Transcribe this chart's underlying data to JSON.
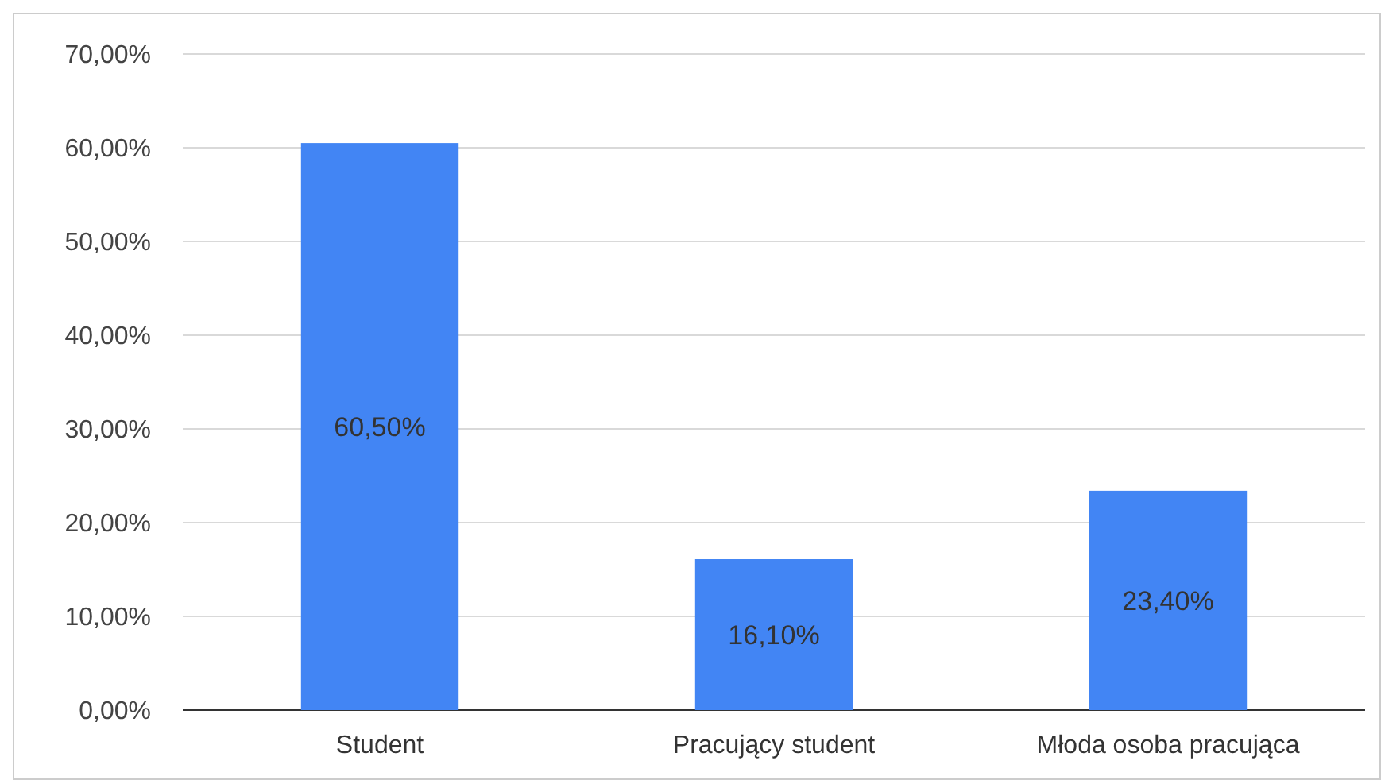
{
  "chart_data": {
    "type": "bar",
    "categories": [
      "Student",
      "Pracujący student",
      "Młoda osoba pracująca"
    ],
    "values": [
      60.5,
      16.1,
      23.4
    ],
    "color": "#4285f4",
    "value_labels": [
      "60,50%",
      "16,10%",
      "23,40%"
    ],
    "ylim": [
      0,
      70
    ],
    "yticks": [
      {
        "value": 0,
        "label": "0,00%"
      },
      {
        "value": 10,
        "label": "10,00%"
      },
      {
        "value": 20,
        "label": "20,00%"
      },
      {
        "value": 30,
        "label": "30,00%"
      },
      {
        "value": 40,
        "label": "40,00%"
      },
      {
        "value": 50,
        "label": "50,00%"
      },
      {
        "value": 60,
        "label": "60,00%"
      },
      {
        "value": 70,
        "label": "70,00%"
      }
    ],
    "grid": "y"
  }
}
